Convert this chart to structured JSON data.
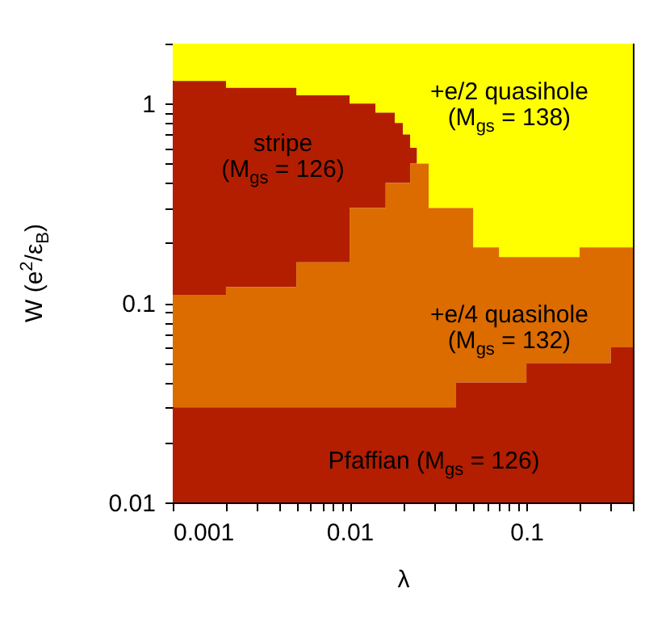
{
  "chart_data": {
    "type": "area",
    "xlabel": "λ",
    "ylabel": "W (e$^{2}$/ε$_{B}$)",
    "log": "xy",
    "x": [
      0.001,
      0.002,
      0.005,
      0.01,
      0.014,
      0.016,
      0.018,
      0.02,
      0.022,
      0.024,
      0.028,
      0.04,
      0.05,
      0.07,
      0.1,
      0.2,
      0.3,
      0.4
    ],
    "xlim": [
      0.001,
      0.4
    ],
    "ylim": [
      0.01,
      2
    ],
    "xticks": [
      0.001,
      {
        "value": 0.002,
        "label": null
      },
      {
        "value": 0.003,
        "label": null
      },
      {
        "value": 0.004,
        "label": null
      },
      {
        "value": 0.005,
        "label": null
      },
      {
        "value": 0.006,
        "label": null
      },
      {
        "value": 0.007,
        "label": null
      },
      {
        "value": 0.008,
        "label": null
      },
      {
        "value": 0.009,
        "label": null
      },
      0.01,
      {
        "value": 0.02,
        "label": null
      },
      {
        "value": 0.03,
        "label": null
      },
      {
        "value": 0.04,
        "label": null
      },
      {
        "value": 0.05,
        "label": null
      },
      {
        "value": 0.06,
        "label": null
      },
      {
        "value": 0.07,
        "label": null
      },
      {
        "value": 0.08,
        "label": null
      },
      {
        "value": 0.09,
        "label": null
      },
      0.1,
      {
        "value": 0.2,
        "label": null
      },
      {
        "value": 0.3,
        "label": null
      },
      {
        "value": 0.4,
        "label": null
      }
    ],
    "yticks": [
      0.01,
      {
        "value": 0.02,
        "label": null
      },
      {
        "value": 0.03,
        "label": null
      },
      {
        "value": 0.04,
        "label": null
      },
      {
        "value": 0.05,
        "label": null
      },
      {
        "value": 0.06,
        "label": null
      },
      {
        "value": 0.07,
        "label": null
      },
      {
        "value": 0.08,
        "label": null
      },
      {
        "value": 0.09,
        "label": null
      },
      0.1,
      {
        "value": 0.2,
        "label": null
      },
      {
        "value": 0.3,
        "label": null
      },
      {
        "value": 0.4,
        "label": null
      },
      {
        "value": 0.5,
        "label": null
      },
      {
        "value": 0.6,
        "label": null
      },
      {
        "value": 0.7,
        "label": null
      },
      {
        "value": 0.8,
        "label": null
      },
      {
        "value": 0.9,
        "label": null
      },
      1,
      {
        "value": 2,
        "label": null
      }
    ],
    "series": [
      {
        "name": "+e/2 quasihole (M$_{gs}$ = 138)",
        "color": "#ffff00",
        "values": [
          2,
          2,
          2,
          2,
          2,
          2,
          2,
          2,
          2,
          2,
          2,
          2,
          2,
          2,
          2,
          2,
          2,
          2
        ]
      },
      {
        "name": "stripe (M$_{gs}$ = 126)",
        "color": "#b41e00",
        "values": [
          1.3,
          1.2,
          1.1,
          1.0,
          0.9,
          0.9,
          0.8,
          0.7,
          0.6,
          0.5,
          0.3,
          0.3,
          0.19,
          0.17,
          0.17,
          0.19,
          0.19,
          0.19
        ]
      },
      {
        "name": "+e/4 quasihole (M$_{gs}$ = 132)",
        "color": "#dc6c00",
        "values": [
          0.11,
          0.12,
          0.16,
          0.3,
          0.3,
          0.4,
          0.4,
          0.4,
          0.5,
          0.5,
          0.3,
          0.3,
          0.19,
          0.17,
          0.17,
          0.19,
          0.19,
          0.19
        ]
      },
      {
        "name": "Pfaffian (M$_{gs}$ = 126)",
        "color": "#b31d00",
        "values": [
          0.03,
          0.03,
          0.03,
          0.03,
          0.03,
          0.03,
          0.03,
          0.03,
          0.03,
          0.03,
          0.03,
          0.04,
          0.04,
          0.04,
          0.05,
          0.05,
          0.06,
          0.06
        ]
      }
    ]
  }
}
